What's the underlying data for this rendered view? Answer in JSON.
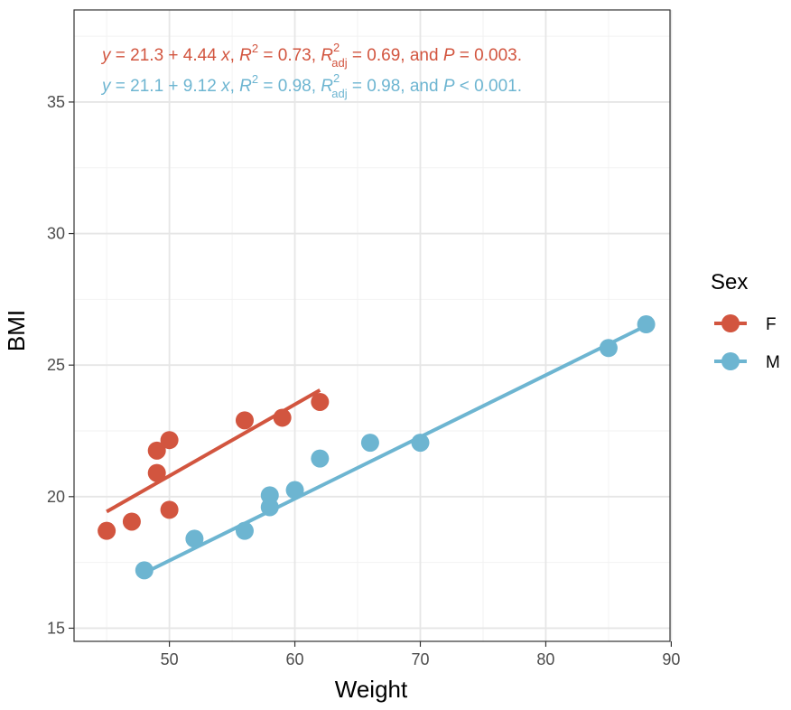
{
  "chart_data": {
    "type": "scatter",
    "xlabel": "Weight",
    "ylabel": "BMI",
    "xlim": [
      42.4,
      89.9
    ],
    "ylim": [
      14.5,
      38.5
    ],
    "x_ticks": [
      50,
      60,
      70,
      80,
      90
    ],
    "y_ticks": [
      15,
      20,
      25,
      30,
      35
    ],
    "x_tick_labels": [
      "50",
      "60",
      "70",
      "80",
      "90"
    ],
    "y_tick_labels": [
      "15",
      "20",
      "25",
      "30",
      "35"
    ],
    "legend": {
      "title": "Sex",
      "position": "right"
    },
    "series": [
      {
        "name": "F",
        "color": "#d2553f",
        "points": [
          [
            45,
            18.7
          ],
          [
            47,
            19.05
          ],
          [
            49,
            21.75
          ],
          [
            49,
            20.9
          ],
          [
            50,
            22.15
          ],
          [
            50,
            19.5
          ],
          [
            56,
            22.9
          ],
          [
            59,
            23.0
          ],
          [
            62,
            23.6
          ]
        ],
        "fit": {
          "x": [
            45,
            62
          ],
          "y": [
            19.43,
            24.05
          ]
        },
        "equation": {
          "intercept": "21.3",
          "slope": "4.44",
          "r2": "0.73",
          "r2_adj": "0.69",
          "p": "0.003",
          "p_op": "="
        }
      },
      {
        "name": "M",
        "color": "#6db5d1",
        "points": [
          [
            48,
            17.2
          ],
          [
            52,
            18.4
          ],
          [
            56,
            18.7
          ],
          [
            58,
            19.6
          ],
          [
            58,
            20.05
          ],
          [
            60,
            20.25
          ],
          [
            62,
            21.45
          ],
          [
            66,
            22.05
          ],
          [
            70,
            22.05
          ],
          [
            85,
            25.65
          ],
          [
            88,
            26.55
          ]
        ],
        "fit": {
          "x": [
            48,
            88
          ],
          "y": [
            17.1,
            26.5
          ]
        },
        "equation": {
          "intercept": "21.1",
          "slope": "9.12",
          "r2": "0.98",
          "r2_adj": "0.98",
          "p": "0.001",
          "p_op": "<"
        }
      }
    ]
  }
}
